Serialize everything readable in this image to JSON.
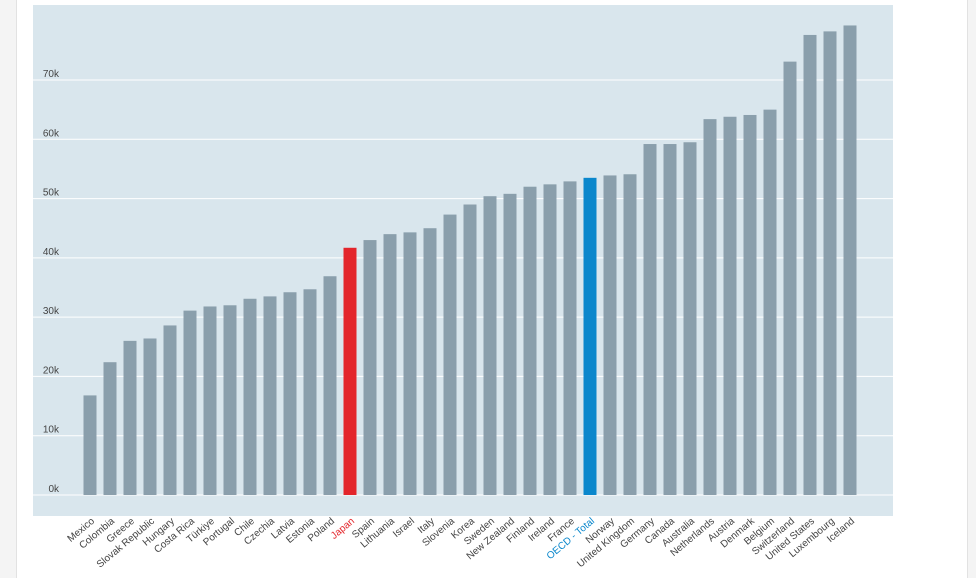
{
  "chart_data": {
    "type": "bar",
    "title": "",
    "xlabel": "",
    "ylabel": "",
    "ylim": [
      0,
      80000
    ],
    "grid": true,
    "y_ticks": [
      {
        "value": 0,
        "label": "0k"
      },
      {
        "value": 10000,
        "label": "10k"
      },
      {
        "value": 20000,
        "label": "20k"
      },
      {
        "value": 30000,
        "label": "30k"
      },
      {
        "value": 40000,
        "label": "40k"
      },
      {
        "value": 50000,
        "label": "50k"
      },
      {
        "value": 60000,
        "label": "60k"
      },
      {
        "value": 70000,
        "label": "70k"
      }
    ],
    "categories": [
      "Mexico",
      "Colombia",
      "Greece",
      "Slovak Republic",
      "Hungary",
      "Costa Rica",
      "Türkiye",
      "Portugal",
      "Chile",
      "Czechia",
      "Latvia",
      "Estonia",
      "Poland",
      "Japan",
      "Spain",
      "Lithuania",
      "Israel",
      "Italy",
      "Slovenia",
      "Korea",
      "Sweden",
      "New Zealand",
      "Finland",
      "Ireland",
      "France",
      "OECD - Total",
      "Norway",
      "United Kingdom",
      "Germany",
      "Canada",
      "Australia",
      "Netherlands",
      "Austria",
      "Denmark",
      "Belgium",
      "Switzerland",
      "United States",
      "Luxembourg",
      "Iceland"
    ],
    "values": [
      16800,
      22400,
      26000,
      26400,
      28600,
      31100,
      31800,
      32000,
      33100,
      33500,
      34200,
      34700,
      36900,
      41700,
      43000,
      44000,
      44300,
      45000,
      47300,
      49000,
      50400,
      50800,
      52000,
      52400,
      52900,
      53500,
      53900,
      54100,
      59200,
      59200,
      59500,
      63400,
      63800,
      64100,
      65000,
      73100,
      77600,
      78200,
      79200
    ],
    "highlight": {
      "Japan": "#e3262c",
      "OECD - Total": "#0a87cc"
    },
    "colors": {
      "bar": "#8a9fac",
      "plot_bg": "#d9e6ed",
      "gridline": "#ffffff",
      "tick_text": "#444444",
      "japan_label": "#e3262c",
      "oecd_label": "#0a87cc"
    }
  }
}
